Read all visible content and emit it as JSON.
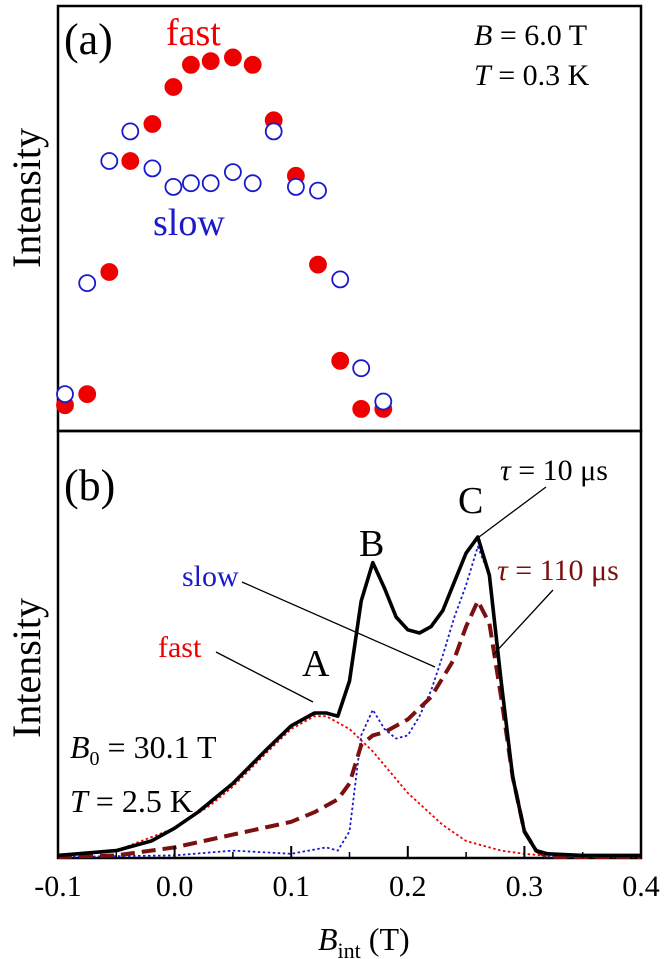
{
  "chart_data": [
    {
      "panel": "(a)",
      "type": "scatter",
      "ylabel": "Intensity",
      "xlim": [
        -0.1,
        0.4
      ],
      "annotations": [
        {
          "id": "b",
          "pre": "B",
          "post": " = 6.0 T"
        },
        {
          "id": "t",
          "pre": "T",
          "post": " = 0.3 K"
        }
      ],
      "series": [
        {
          "name": "fast",
          "color": "#ee0000",
          "filled": true,
          "x": [
            -0.094,
            -0.075,
            -0.056,
            -0.038,
            -0.019,
            -0.001,
            0.014,
            0.031,
            0.05,
            0.067,
            0.085,
            0.104,
            0.123,
            0.142,
            0.16,
            0.179
          ],
          "y": [
            0.04,
            0.07,
            0.4,
            0.7,
            0.8,
            0.9,
            0.96,
            0.97,
            0.98,
            0.96,
            0.81,
            0.66,
            0.42,
            0.16,
            0.03,
            0.03
          ]
        },
        {
          "name": "slow",
          "color": "#1a1acc",
          "filled": false,
          "x": [
            -0.094,
            -0.075,
            -0.056,
            -0.038,
            -0.019,
            -0.001,
            0.014,
            0.031,
            0.05,
            0.067,
            0.085,
            0.104,
            0.123,
            0.142,
            0.16,
            0.179
          ],
          "y": [
            0.07,
            0.37,
            0.7,
            0.78,
            0.68,
            0.63,
            0.64,
            0.64,
            0.67,
            0.64,
            0.78,
            0.63,
            0.62,
            0.38,
            0.14,
            0.05
          ]
        }
      ]
    },
    {
      "panel": "(b)",
      "type": "line",
      "ylabel": "Intensity",
      "xlim": [
        -0.1,
        0.4
      ],
      "x_ticks": [
        "-0.1",
        "0.0",
        "0.1",
        "0.2",
        "0.3",
        "0.4"
      ],
      "xlabel_main": "B",
      "xlabel_sub": "int",
      "xlabel_unit": " (T)",
      "annotations": [
        {
          "id": "b0",
          "pre": "B",
          "sub": "0",
          "post": " = 30.1 T"
        },
        {
          "id": "t",
          "pre": "T",
          "post": " = 2.5 K"
        },
        {
          "id": "tau10",
          "pre": "τ",
          "post": " = 10 μs"
        },
        {
          "id": "tau110",
          "pre": "τ",
          "post": " = 110 μs"
        }
      ],
      "peak_labels": [
        {
          "text": "A",
          "x": 0.125
        },
        {
          "text": "B",
          "x": 0.17
        },
        {
          "text": "C",
          "x": 0.26
        }
      ],
      "series": [
        {
          "name": "τ = 10 μs",
          "color": "#000000",
          "style": "solid",
          "x": [
            -0.1,
            -0.05,
            -0.02,
            0.0,
            0.02,
            0.05,
            0.08,
            0.1,
            0.12,
            0.13,
            0.14,
            0.15,
            0.16,
            0.17,
            0.18,
            0.19,
            0.2,
            0.21,
            0.22,
            0.23,
            0.24,
            0.25,
            0.26,
            0.27,
            0.28,
            0.29,
            0.3,
            0.31,
            0.32,
            0.35,
            0.4
          ],
          "y": [
            0.005,
            0.02,
            0.05,
            0.09,
            0.14,
            0.23,
            0.34,
            0.41,
            0.45,
            0.45,
            0.44,
            0.55,
            0.8,
            0.92,
            0.84,
            0.75,
            0.71,
            0.7,
            0.72,
            0.77,
            0.86,
            0.95,
            1.0,
            0.88,
            0.55,
            0.25,
            0.08,
            0.02,
            0.01,
            0.005,
            0.005
          ]
        },
        {
          "name": "τ = 110 μs",
          "color": "#7a1010",
          "style": "dashed",
          "x": [
            -0.1,
            -0.05,
            0.0,
            0.05,
            0.1,
            0.12,
            0.14,
            0.15,
            0.16,
            0.17,
            0.18,
            0.2,
            0.22,
            0.24,
            0.25,
            0.26,
            0.27,
            0.28,
            0.29,
            0.3,
            0.31,
            0.32,
            0.4
          ],
          "y": [
            0.0,
            0.005,
            0.03,
            0.07,
            0.11,
            0.14,
            0.18,
            0.23,
            0.35,
            0.38,
            0.39,
            0.43,
            0.5,
            0.62,
            0.72,
            0.8,
            0.73,
            0.5,
            0.25,
            0.08,
            0.02,
            0.0,
            0.0
          ]
        },
        {
          "name": "slow",
          "color": "#1a1acc",
          "style": "dotted",
          "x": [
            -0.1,
            0.0,
            0.05,
            0.1,
            0.13,
            0.14,
            0.15,
            0.16,
            0.17,
            0.18,
            0.19,
            0.2,
            0.21,
            0.22,
            0.23,
            0.24,
            0.25,
            0.26,
            0.27,
            0.28,
            0.29,
            0.3,
            0.31,
            0.32,
            0.4
          ],
          "y": [
            0.0,
            0.005,
            0.02,
            0.01,
            0.03,
            0.02,
            0.08,
            0.38,
            0.46,
            0.4,
            0.37,
            0.38,
            0.44,
            0.52,
            0.63,
            0.75,
            0.85,
            0.97,
            0.88,
            0.55,
            0.25,
            0.08,
            0.02,
            0.0,
            0.0
          ]
        },
        {
          "name": "fast",
          "color": "#ee0000",
          "style": "dotted",
          "x": [
            -0.1,
            -0.05,
            0.0,
            0.03,
            0.05,
            0.08,
            0.1,
            0.12,
            0.13,
            0.15,
            0.17,
            0.2,
            0.23,
            0.25,
            0.28,
            0.3,
            0.33,
            0.35,
            0.4
          ],
          "y": [
            0.005,
            0.02,
            0.09,
            0.16,
            0.22,
            0.33,
            0.4,
            0.44,
            0.44,
            0.4,
            0.33,
            0.2,
            0.1,
            0.05,
            0.02,
            0.01,
            0.0,
            0.0,
            0.0
          ]
        }
      ]
    }
  ]
}
